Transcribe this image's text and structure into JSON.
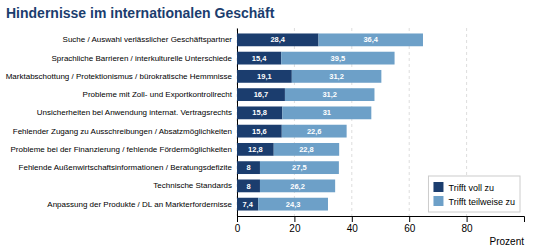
{
  "chart_data": {
    "type": "bar",
    "orientation": "horizontal",
    "stacked": true,
    "title": "Hindernisse im internationalen Geschäft",
    "xlabel": "Prozent",
    "categories": [
      "Suche / Auswahl verlässlicher Geschäftspartner",
      "Sprachliche Barrieren / interkulturelle Unterschiede",
      "Marktabschottung / Protektionismus / bürokratische Hemmnisse",
      "Probleme mit Zoll- und Exportkontrollrecht",
      "Unsicherheiten bei Anwendung internat. Vertragsrechts",
      "Fehlender Zugang zu Ausschreibungen / Absatzmöglichkeiten",
      "Probleme bei der Finanzierung / fehlende Fördermöglichkeiten",
      "Fehlende Außenwirtschaftsinformationen / Beratungsdefizite",
      "Technische Standards",
      "Anpassung der Produkte / DL an Markterfordernisse"
    ],
    "series": [
      {
        "name": "Trifft voll zu",
        "color": "#1b3d6e",
        "values": [
          28.4,
          15.4,
          19.1,
          16.7,
          15.8,
          15.6,
          12.8,
          8.0,
          8.0,
          7.4
        ],
        "value_labels": [
          "28,4",
          "15,4",
          "19,1",
          "16,7",
          "15,8",
          "15,6",
          "12,8",
          "8",
          "8",
          "7,4"
        ]
      },
      {
        "name": "Trifft teilweise zu",
        "color": "#6da0c8",
        "values": [
          36.4,
          39.5,
          31.2,
          31.2,
          31.0,
          22.6,
          22.8,
          27.5,
          26.2,
          24.3
        ],
        "value_labels": [
          "36,4",
          "39,5",
          "31,2",
          "31,2",
          "31",
          "22,6",
          "22,8",
          "27,5",
          "26,2",
          "24,3"
        ]
      }
    ],
    "xlim": [
      0,
      100
    ],
    "xticks": [
      0,
      20,
      40,
      60,
      80
    ],
    "grid": true,
    "legend": "lower right",
    "data_labels": true
  }
}
